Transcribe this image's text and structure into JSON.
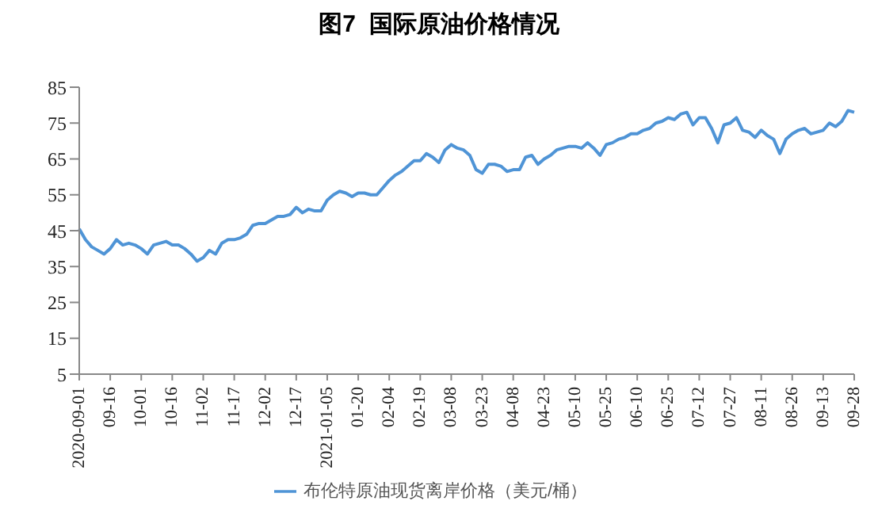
{
  "chart_data": {
    "type": "line",
    "title": "图7  国际原油价格情况",
    "categories": [
      "2020-09-01",
      null,
      null,
      null,
      null,
      "09-16",
      null,
      null,
      null,
      null,
      "10-01",
      null,
      null,
      null,
      null,
      "10-16",
      null,
      null,
      null,
      null,
      "11-02",
      null,
      null,
      null,
      null,
      "11-17",
      null,
      null,
      null,
      null,
      "12-02",
      null,
      null,
      null,
      null,
      "12-17",
      null,
      null,
      null,
      null,
      "2021-01-05",
      null,
      null,
      null,
      null,
      "01-20",
      null,
      null,
      null,
      null,
      "02-04",
      null,
      null,
      null,
      null,
      "02-19",
      null,
      null,
      null,
      null,
      "03-08",
      null,
      null,
      null,
      null,
      "03-23",
      null,
      null,
      null,
      null,
      "04-08",
      null,
      null,
      null,
      null,
      "04-23",
      null,
      null,
      null,
      null,
      "05-10",
      null,
      null,
      null,
      null,
      "05-25",
      null,
      null,
      null,
      null,
      "06-10",
      null,
      null,
      null,
      null,
      "06-25",
      null,
      null,
      null,
      null,
      "07-12",
      null,
      null,
      null,
      null,
      "07-27",
      null,
      null,
      null,
      null,
      "08-11",
      null,
      null,
      null,
      null,
      "08-26",
      null,
      null,
      null,
      null,
      "09-13",
      null,
      null,
      null,
      null,
      "09-28"
    ],
    "series": [
      {
        "name": "布伦特原油现货离岸价格（美元/桶）",
        "color": "#4f94d6",
        "values": [
          45.5,
          42.5,
          40.5,
          39.5,
          38.5,
          40,
          42.5,
          41,
          41.5,
          41,
          40,
          38.5,
          41,
          41.5,
          42,
          41,
          41,
          40,
          38.5,
          36.5,
          37.5,
          39.5,
          38.5,
          41.5,
          42.5,
          42.5,
          43,
          44,
          46.5,
          47,
          47,
          48,
          49,
          49,
          49.5,
          51.5,
          50,
          51,
          50.5,
          50.5,
          53.5,
          55,
          56,
          55.5,
          54.5,
          55.5,
          55.5,
          55,
          55,
          57,
          59,
          60.5,
          61.5,
          63,
          64.5,
          64.5,
          66.5,
          65.5,
          64,
          67.5,
          69,
          68,
          67.5,
          66,
          62,
          61,
          63.5,
          63.5,
          63,
          61.5,
          62,
          62,
          65.5,
          66,
          63.5,
          65,
          66,
          67.5,
          68,
          68.5,
          68.5,
          68,
          69.5,
          68,
          66,
          69,
          69.5,
          70.5,
          71,
          72,
          72,
          73,
          73.5,
          75,
          75.5,
          76.5,
          76,
          77.5,
          78,
          74.5,
          76.5,
          76.5,
          73.5,
          69.5,
          74.5,
          75,
          76.5,
          73,
          72.5,
          71,
          73,
          71.5,
          70.5,
          66.5,
          70.5,
          72,
          73,
          73.5,
          72,
          72.5,
          73,
          75,
          74,
          75.5,
          78.5,
          78
        ]
      }
    ],
    "ylim": [
      5,
      85
    ],
    "yticks": [
      5,
      15,
      25,
      35,
      45,
      55,
      65,
      75,
      85
    ],
    "legend": "bottom",
    "marker": "none",
    "line_style": "solid"
  }
}
